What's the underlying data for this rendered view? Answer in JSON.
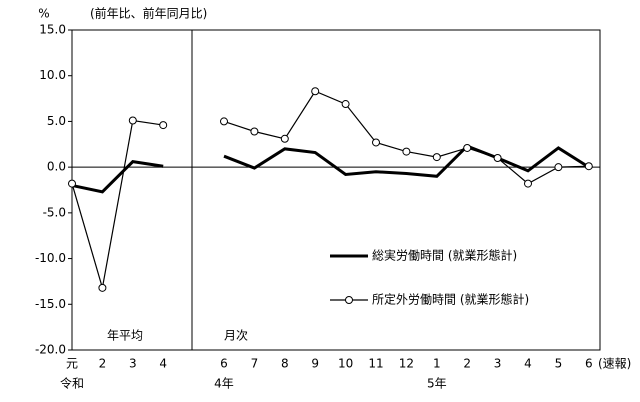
{
  "chart_data": {
    "type": "line",
    "y_unit": "%",
    "subtitle": "(前年比、前年同月比)",
    "categories": [
      "元",
      "2",
      "3",
      "4",
      null,
      "6",
      "7",
      "8",
      "9",
      "10",
      "11",
      "12",
      "1",
      "2",
      "3",
      "4",
      "5",
      "6"
    ],
    "x_sublabels": [
      "令和",
      null,
      null,
      null,
      null,
      "4年",
      null,
      null,
      null,
      null,
      null,
      null,
      "5年",
      null,
      null,
      null,
      null,
      null
    ],
    "x_note": "(速報)",
    "annotations": [
      "年平均",
      "月次"
    ],
    "series": [
      {
        "name": "総実労働時間 (就業形態計)",
        "color": "#000000",
        "marker": false,
        "values": [
          -2.0,
          -2.7,
          0.6,
          0.1,
          null,
          1.2,
          -0.1,
          2.0,
          1.6,
          -0.8,
          -0.5,
          -0.7,
          -1.0,
          2.3,
          1.0,
          -0.4,
          2.1,
          0.0
        ]
      },
      {
        "name": "所定外労働時間 (就業形態計)",
        "color": "#000000",
        "marker": true,
        "values": [
          -1.8,
          -13.2,
          5.1,
          4.6,
          null,
          5.0,
          3.9,
          3.1,
          8.3,
          6.9,
          2.7,
          1.7,
          1.1,
          2.1,
          1.0,
          -1.8,
          0.0,
          0.1
        ]
      }
    ],
    "ylim": [
      -20,
      15
    ],
    "yticks": [
      {
        "value": -20,
        "label": "-20.0"
      },
      {
        "value": -15,
        "label": "-15.0"
      },
      {
        "value": -10,
        "label": "-10.0"
      },
      {
        "value": -5,
        "label": "-5.0"
      },
      {
        "value": 0,
        "label": "0.0"
      },
      {
        "value": 5,
        "label": "5.0"
      },
      {
        "value": 10,
        "label": "10.0"
      },
      {
        "value": 15,
        "label": "15.0"
      }
    ],
    "zero_line": true
  }
}
